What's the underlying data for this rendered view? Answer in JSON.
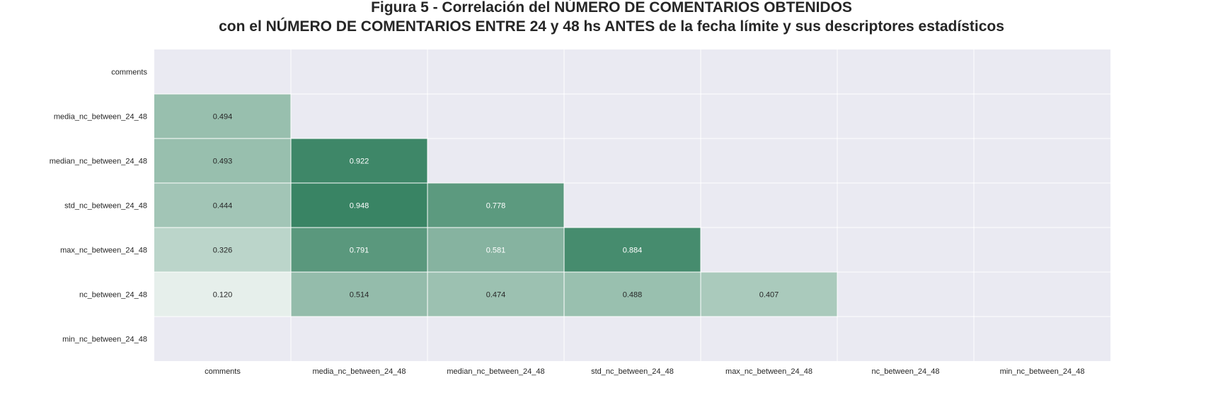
{
  "chart_data": {
    "type": "heatmap",
    "title": "Figura 5 - Correlación del NÚMERO DE COMENTARIOS OBTENIDOS",
    "subtitle": "con el NÚMERO DE COMENTARIOS ENTRE 24 y 48 hs ANTES de la fecha límite y sus descriptores estadísticos",
    "rows": [
      "comments",
      "media_nc_between_24_48",
      "median_nc_between_24_48",
      "std_nc_between_24_48",
      "max_nc_between_24_48",
      "nc_between_24_48",
      "min_nc_between_24_48"
    ],
    "columns": [
      "comments",
      "media_nc_between_24_48",
      "median_nc_between_24_48",
      "std_nc_between_24_48",
      "max_nc_between_24_48",
      "nc_between_24_48",
      "min_nc_between_24_48"
    ],
    "values": [
      [
        null,
        null,
        null,
        null,
        null,
        null,
        null
      ],
      [
        "0.494",
        null,
        null,
        null,
        null,
        null,
        null
      ],
      [
        "0.493",
        "0.922",
        null,
        null,
        null,
        null,
        null
      ],
      [
        "0.444",
        "0.948",
        "0.778",
        null,
        null,
        null,
        null
      ],
      [
        "0.326",
        "0.791",
        "0.581",
        "0.884",
        null,
        null,
        null
      ],
      [
        "0.120",
        "0.514",
        "0.474",
        "0.488",
        "0.407",
        null,
        null
      ],
      [
        null,
        null,
        null,
        null,
        null,
        null,
        null
      ]
    ],
    "colors": {
      "background": "#eaeaf2",
      "low": "#ffffff",
      "high": "#2e7d5b",
      "gridline": "#ffffff",
      "text_dark": "#262626",
      "text_light": "#ffffff"
    },
    "grid": true,
    "legend": "none"
  }
}
